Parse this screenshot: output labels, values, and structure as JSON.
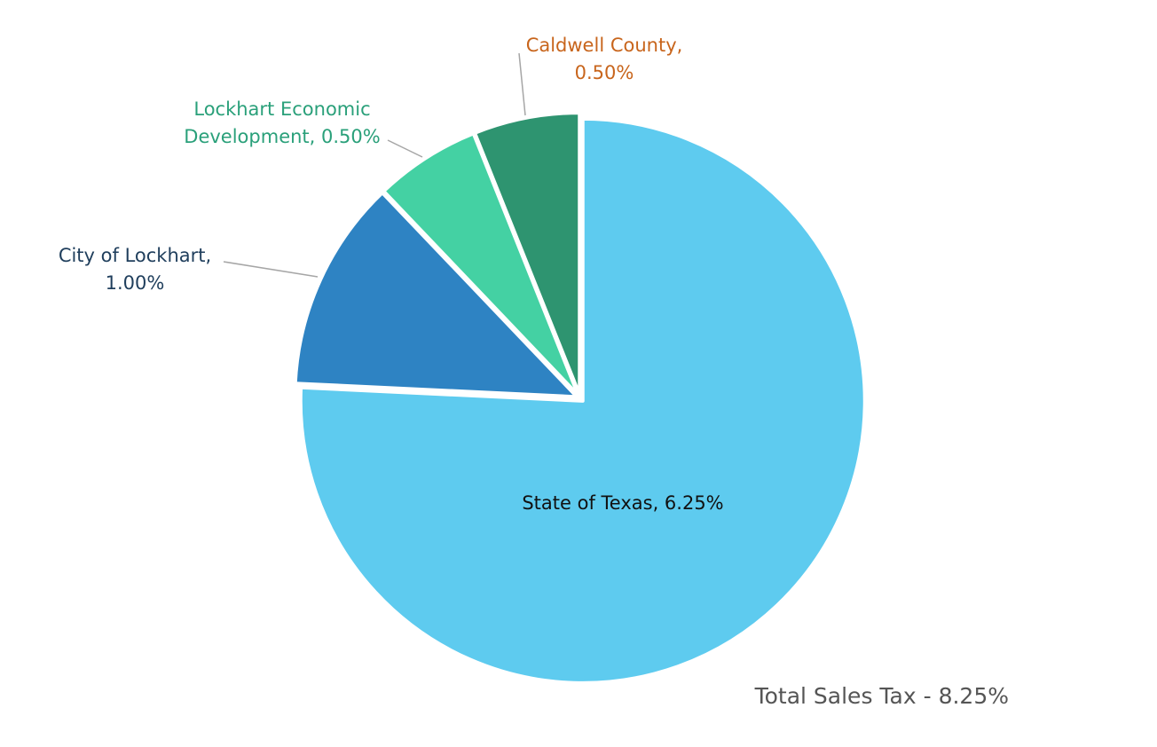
{
  "chart_data": {
    "type": "pie",
    "start_angle_deg": 0,
    "direction": "clockwise",
    "slices": [
      {
        "name": "State of Texas",
        "value": 6.25,
        "label": "State of Texas, 6.25%",
        "color": "#5ECBEF",
        "label_color": "#111111",
        "label_placement": "inside"
      },
      {
        "name": "City of Lockhart",
        "value": 1.0,
        "label_lines": [
          "City of Lockhart,",
          "1.00%"
        ],
        "color": "#2E83C3",
        "label_color": "#1F3E5C",
        "label_placement": "outside-left"
      },
      {
        "name": "Lockhart Economic Development",
        "value": 0.5,
        "label_lines": [
          "Lockhart Economic",
          "Development, 0.50%"
        ],
        "color": "#44D1A3",
        "label_color": "#2AA07A",
        "label_placement": "outside-upper-left"
      },
      {
        "name": "Caldwell County",
        "value": 0.5,
        "label_lines": [
          "Caldwell County,",
          "0.50%"
        ],
        "color": "#2E9470",
        "label_color": "#C8651C",
        "label_placement": "outside-top"
      }
    ],
    "total_text": "Total Sales Tax - 8.25%",
    "total_color": "#555555",
    "slice_border_color": "#ffffff",
    "leader_line_color": "#A6A6A6"
  }
}
